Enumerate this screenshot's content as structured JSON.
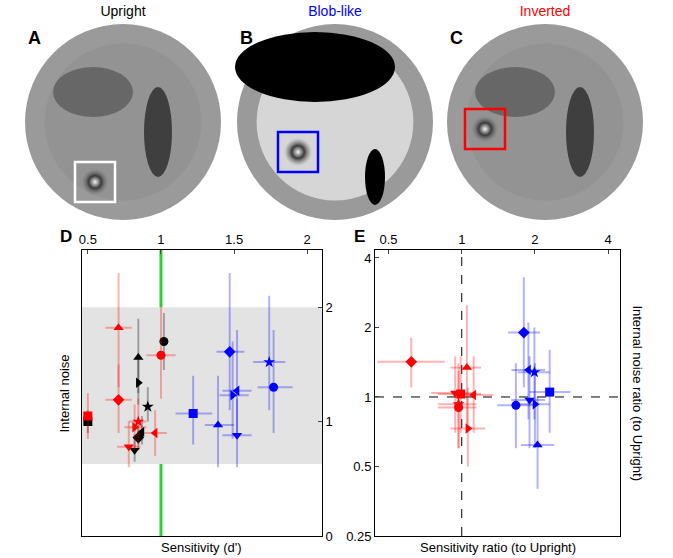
{
  "image_panels": [
    {
      "letter": "A",
      "title": "Upright",
      "color": "#000000"
    },
    {
      "letter": "B",
      "title": "Blob-like",
      "color": "#0000ff"
    },
    {
      "letter": "C",
      "title": "Inverted",
      "color": "#ff0000"
    }
  ],
  "chart_data": [
    {
      "letter": "D",
      "type": "scatter",
      "x_label": "Sensitivity (d')",
      "y_label": "Internal noise",
      "xlim": [
        0.46,
        2.1
      ],
      "xticks": [
        0.5,
        1,
        1.5,
        2
      ],
      "ylim": [
        0,
        2.5
      ],
      "yticks": [
        0,
        1,
        2
      ],
      "shaded_band_y": [
        0.63,
        2
      ],
      "reference_lines": [
        {
          "x": 1,
          "color": "#33cc33",
          "line_style": "solid"
        }
      ],
      "series": [
        {
          "color": "#000000",
          "points": [
            {
              "x": 0.5,
              "y": 1.0,
              "marker": "square",
              "y_interval": [
                0.9,
                1.1
              ]
            },
            {
              "x": 0.845,
              "y": 1.56,
              "marker": "triangle-up",
              "y_interval": [
                1.25,
                1.9
              ]
            },
            {
              "x": 0.845,
              "y": 1.34,
              "marker": "triangle-right",
              "y_interval": [
                1.15,
                1.55
              ]
            },
            {
              "x": 1.02,
              "y": 1.7,
              "marker": "circle",
              "y_interval": [
                1.45,
                1.95
              ]
            },
            {
              "x": 0.91,
              "y": 1.13,
              "marker": "star",
              "y_interval": [
                1.0,
                1.3
              ]
            },
            {
              "x": 0.87,
              "y": 0.91,
              "marker": "triangle-left",
              "y_interval": [
                0.8,
                1.05
              ]
            },
            {
              "x": 0.845,
              "y": 0.86,
              "marker": "diamond",
              "y_interval": [
                0.75,
                0.97
              ]
            },
            {
              "x": 0.82,
              "y": 0.75,
              "marker": "triangle-down",
              "y_interval": [
                0.65,
                0.88
              ]
            }
          ]
        },
        {
          "color": "#ff0000",
          "points": [
            {
              "x": 0.5,
              "y": 1.05,
              "marker": "square",
              "x_interval": [
                0.47,
                0.53
              ],
              "y_interval": [
                0.85,
                1.25
              ]
            },
            {
              "x": 0.71,
              "y": 1.82,
              "marker": "triangle-up",
              "x_interval": [
                0.62,
                0.8
              ],
              "y_interval": [
                1.3,
                2.3
              ]
            },
            {
              "x": 0.71,
              "y": 1.19,
              "marker": "diamond",
              "x_interval": [
                0.62,
                0.8
              ],
              "y_interval": [
                0.9,
                1.5
              ]
            },
            {
              "x": 1.0,
              "y": 1.58,
              "marker": "circle",
              "x_interval": [
                0.9,
                1.1
              ],
              "y_interval": [
                1.2,
                2.0
              ]
            },
            {
              "x": 0.845,
              "y": 1.0,
              "marker": "star",
              "x_interval": [
                0.78,
                0.9
              ],
              "y_interval": [
                0.8,
                1.2
              ]
            },
            {
              "x": 0.78,
              "y": 0.78,
              "marker": "triangle-down",
              "x_interval": [
                0.7,
                0.86
              ],
              "y_interval": [
                0.6,
                1.0
              ]
            },
            {
              "x": 0.96,
              "y": 0.9,
              "marker": "triangle-left",
              "x_interval": [
                0.88,
                1.04
              ],
              "y_interval": [
                0.7,
                1.1
              ]
            },
            {
              "x": 0.82,
              "y": 0.95,
              "marker": "triangle-right",
              "x_interval": [
                0.75,
                0.9
              ],
              "y_interval": [
                0.75,
                1.15
              ]
            }
          ]
        },
        {
          "color": "#0000ff",
          "points": [
            {
              "x": 1.22,
              "y": 1.07,
              "marker": "square",
              "x_interval": [
                1.1,
                1.35
              ],
              "y_interval": [
                0.8,
                1.4
              ]
            },
            {
              "x": 1.39,
              "y": 0.97,
              "marker": "triangle-up",
              "x_interval": [
                1.3,
                1.5
              ],
              "y_interval": [
                0.6,
                1.4
              ]
            },
            {
              "x": 1.47,
              "y": 1.61,
              "marker": "diamond",
              "x_interval": [
                1.38,
                1.57
              ],
              "y_interval": [
                1.1,
                2.3
              ]
            },
            {
              "x": 1.49,
              "y": 1.23,
              "marker": "triangle-right",
              "x_interval": [
                1.4,
                1.6
              ],
              "y_interval": [
                0.85,
                1.7
              ]
            },
            {
              "x": 1.52,
              "y": 1.27,
              "marker": "triangle-left",
              "x_interval": [
                1.42,
                1.62
              ],
              "y_interval": [
                0.85,
                1.8
              ]
            },
            {
              "x": 1.52,
              "y": 0.88,
              "marker": "triangle-down",
              "x_interval": [
                1.42,
                1.62
              ],
              "y_interval": [
                0.6,
                1.2
              ]
            },
            {
              "x": 1.74,
              "y": 1.52,
              "marker": "star",
              "x_interval": [
                1.63,
                1.85
              ],
              "y_interval": [
                1.1,
                2.1
              ]
            },
            {
              "x": 1.77,
              "y": 1.3,
              "marker": "circle",
              "x_interval": [
                1.66,
                1.9
              ],
              "y_interval": [
                0.9,
                1.8
              ]
            }
          ]
        }
      ]
    },
    {
      "letter": "E",
      "type": "scatter",
      "log": true,
      "x_label": "Sensitivity ratio (to Upright)",
      "y_label": "Internal noise ratio (to Upright)",
      "xlim": [
        0.44,
        4.48
      ],
      "xticks": [
        0.5,
        1,
        2,
        4
      ],
      "ylim": [
        0.25,
        4.33
      ],
      "yticks": [
        0.25,
        0.5,
        1,
        2,
        4
      ],
      "reference_lines": [
        {
          "x": 1,
          "color": "#000000",
          "line_style": "dash"
        },
        {
          "y": 1,
          "color": "#000000",
          "line_style": "dash"
        }
      ],
      "series": [
        {
          "color": "#ff0000",
          "points": [
            {
              "x": 0.62,
              "y": 1.42,
              "marker": "diamond",
              "x_interval": [
                0.45,
                0.85
              ],
              "y_interval": [
                1.1,
                1.8
              ]
            },
            {
              "x": 1.05,
              "y": 1.34,
              "marker": "triangle-up",
              "x_interval": [
                0.9,
                1.2
              ],
              "y_interval": [
                0.7,
                2.5
              ]
            },
            {
              "x": 0.94,
              "y": 1.04,
              "marker": "triangle-down",
              "x_interval": [
                0.75,
                1.15
              ],
              "y_interval": [
                0.7,
                1.5
              ]
            },
            {
              "x": 0.99,
              "y": 1.03,
              "marker": "square",
              "x_interval": [
                0.8,
                1.2
              ],
              "y_interval": [
                0.7,
                1.5
              ]
            },
            {
              "x": 1.12,
              "y": 1.02,
              "marker": "triangle-left",
              "x_interval": [
                0.95,
                1.35
              ],
              "y_interval": [
                0.7,
                1.5
              ]
            },
            {
              "x": 0.97,
              "y": 0.93,
              "marker": "star",
              "x_interval": [
                0.8,
                1.15
              ],
              "y_interval": [
                0.6,
                1.4
              ]
            },
            {
              "x": 0.97,
              "y": 0.9,
              "marker": "circle",
              "x_interval": [
                0.8,
                1.15
              ],
              "y_interval": [
                0.6,
                1.3
              ]
            },
            {
              "x": 1.06,
              "y": 0.73,
              "marker": "triangle-right",
              "x_interval": [
                0.9,
                1.25
              ],
              "y_interval": [
                0.5,
                1.1
              ]
            }
          ]
        },
        {
          "color": "#0000ff",
          "points": [
            {
              "x": 1.8,
              "y": 1.9,
              "marker": "diamond",
              "x_interval": [
                1.55,
                2.1
              ],
              "y_interval": [
                1.1,
                3.3
              ]
            },
            {
              "x": 1.88,
              "y": 1.31,
              "marker": "triangle-left",
              "x_interval": [
                1.6,
                2.2
              ],
              "y_interval": [
                0.8,
                2.1
              ]
            },
            {
              "x": 1.99,
              "y": 1.28,
              "marker": "star",
              "x_interval": [
                1.7,
                2.3
              ],
              "y_interval": [
                0.8,
                2.0
              ]
            },
            {
              "x": 2.3,
              "y": 1.05,
              "marker": "square",
              "x_interval": [
                1.9,
                2.8
              ],
              "y_interval": [
                0.7,
                1.6
              ]
            },
            {
              "x": 1.67,
              "y": 0.92,
              "marker": "circle",
              "x_interval": [
                1.4,
                2.0
              ],
              "y_interval": [
                0.6,
                1.4
              ]
            },
            {
              "x": 2.0,
              "y": 0.93,
              "marker": "triangle-right",
              "x_interval": [
                1.7,
                2.3
              ],
              "y_interval": [
                0.6,
                1.4
              ]
            },
            {
              "x": 1.9,
              "y": 0.97,
              "marker": "triangle-down",
              "x_interval": [
                1.6,
                2.2
              ],
              "y_interval": [
                0.6,
                1.5
              ]
            },
            {
              "x": 2.05,
              "y": 0.62,
              "marker": "triangle-up",
              "x_interval": [
                1.75,
                2.4
              ],
              "y_interval": [
                0.4,
                1.0
              ]
            }
          ]
        }
      ]
    }
  ]
}
